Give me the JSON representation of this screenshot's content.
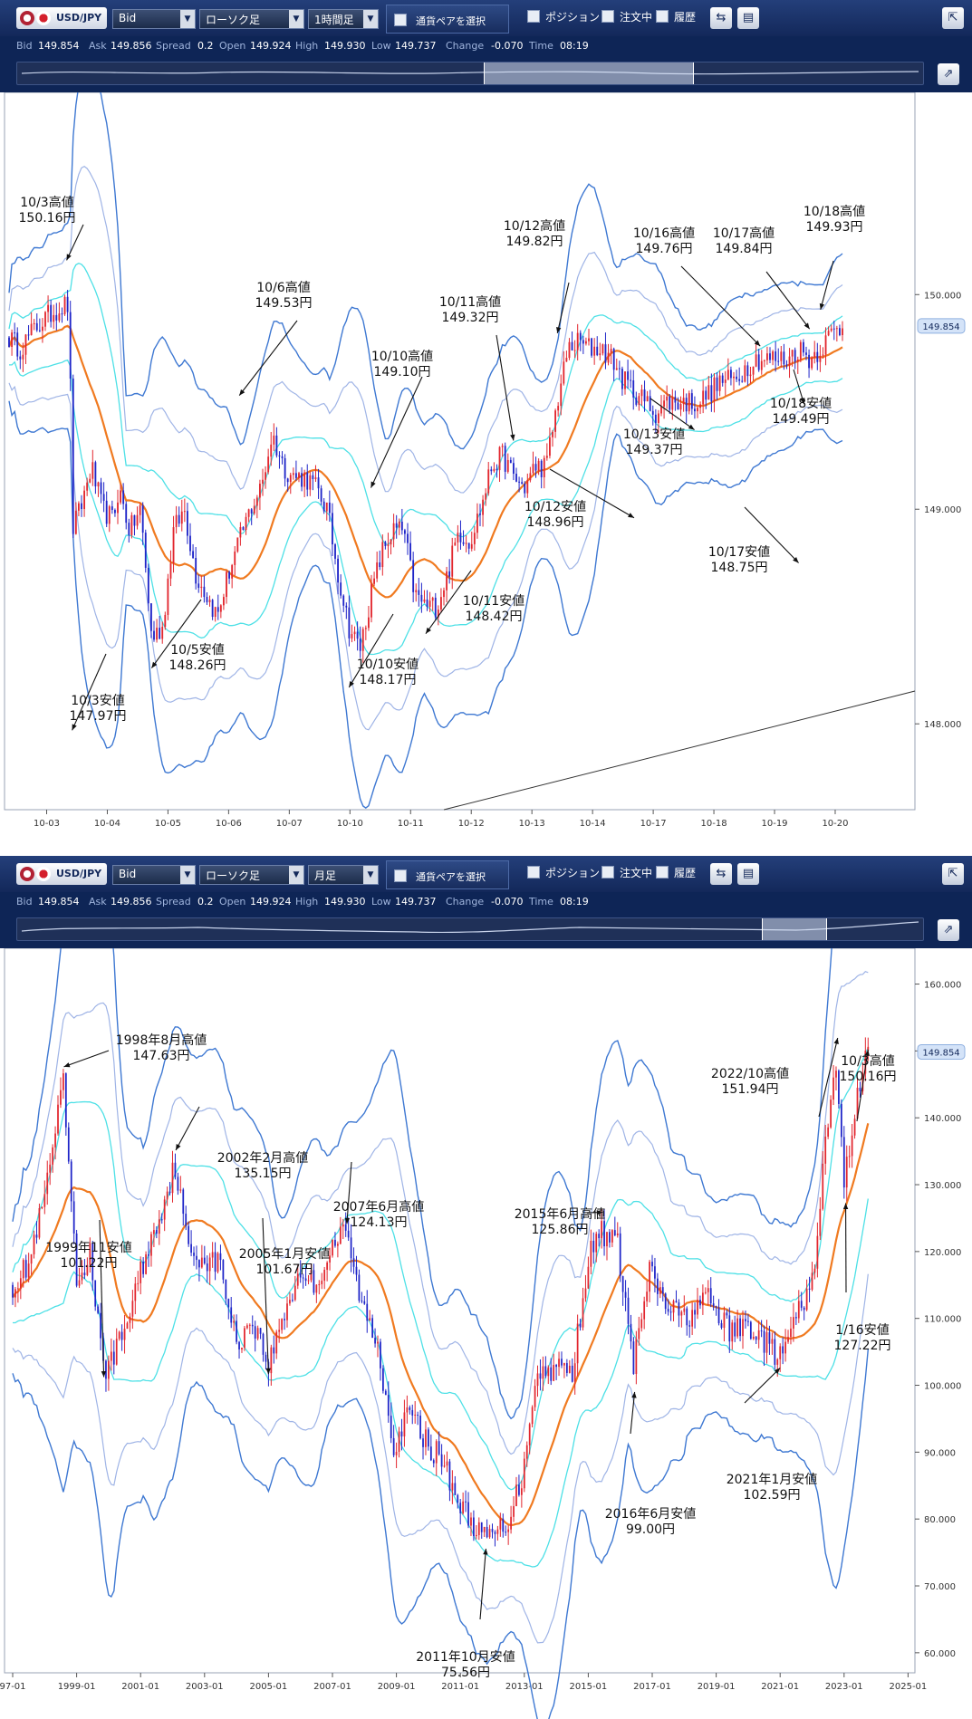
{
  "colors": {
    "bull": "#e2262e",
    "bear": "#1e24c8",
    "ma": "#f07a20",
    "band1": "#4de0e6",
    "band2": "#9fb4e6",
    "band3": "#3e78d2",
    "toolbar": "#13285a"
  },
  "top": {
    "pair": "USD/JPY",
    "price_type": "Bid",
    "chart_type": "ローソク足",
    "timeframe": "1時間足",
    "select_pair": "通貨ペアを選択",
    "positions": "ポジション",
    "orders": "注文中",
    "history": "履歴",
    "info": [
      {
        "label": "Bid",
        "value": "149.854"
      },
      {
        "label": "Ask",
        "value": "149.856"
      },
      {
        "label": "Spread",
        "value": "0.2"
      },
      {
        "label": "Open",
        "value": "149.924"
      },
      {
        "label": "High",
        "value": "149.930"
      },
      {
        "label": "Low",
        "value": "149.737"
      },
      {
        "label": "Change",
        "value": "-0.070"
      },
      {
        "label": "Time",
        "value": "08:19"
      }
    ],
    "current_price_label": "149.854"
  },
  "bottom": {
    "pair": "USD/JPY",
    "price_type": "Bid",
    "chart_type": "ローソク足",
    "timeframe": "月足",
    "select_pair": "通貨ペアを選択",
    "positions": "ポジション",
    "orders": "注文中",
    "history": "履歴",
    "info": [
      {
        "label": "Bid",
        "value": "149.854"
      },
      {
        "label": "Ask",
        "value": "149.856"
      },
      {
        "label": "Spread",
        "value": "0.2"
      },
      {
        "label": "Open",
        "value": "149.924"
      },
      {
        "label": "High",
        "value": "149.930"
      },
      {
        "label": "Low",
        "value": "149.737"
      },
      {
        "label": "Change",
        "value": "-0.070"
      },
      {
        "label": "Time",
        "value": "08:19"
      }
    ],
    "current_price_label": "149.854"
  },
  "chart_data": [
    {
      "type": "candlestick",
      "timeframe": "1時間足",
      "x_ticks": [
        "10-03",
        "10-04",
        "10-05",
        "10-06",
        "10-07",
        "10-10",
        "10-11",
        "10-12",
        "10-13",
        "10-14",
        "10-17",
        "10-18",
        "10-19",
        "10-20"
      ],
      "y_ticks": [
        "148.000",
        "149.000",
        "150.000"
      ],
      "ylim": [
        147.6,
        150.9
      ],
      "current_price": 149.854,
      "indicator": "Bollinger Bands",
      "close_path": [
        [
          0,
          149.8
        ],
        [
          2,
          149.75
        ],
        [
          5,
          149.85
        ],
        [
          8,
          149.92
        ],
        [
          10,
          149.95
        ],
        [
          11,
          149.95
        ],
        [
          11.5,
          148.9
        ],
        [
          13,
          149.0
        ],
        [
          15,
          149.2
        ],
        [
          17,
          149.0
        ],
        [
          19,
          148.95
        ],
        [
          20,
          149.1
        ],
        [
          22,
          148.9
        ],
        [
          24,
          149.0
        ],
        [
          26,
          148.4
        ],
        [
          28,
          148.45
        ],
        [
          30,
          148.9
        ],
        [
          32,
          149.0
        ],
        [
          34,
          148.7
        ],
        [
          36,
          148.6
        ],
        [
          38,
          148.5
        ],
        [
          40,
          148.7
        ],
        [
          42,
          148.85
        ],
        [
          44,
          149.0
        ],
        [
          46,
          149.1
        ],
        [
          48,
          149.35
        ],
        [
          50,
          149.2
        ],
        [
          52,
          149.15
        ],
        [
          54,
          149.15
        ],
        [
          56,
          149.1
        ],
        [
          58,
          149.0
        ],
        [
          60,
          148.7
        ],
        [
          62,
          148.45
        ],
        [
          64,
          148.35
        ],
        [
          66,
          148.6
        ],
        [
          68,
          148.8
        ],
        [
          70,
          148.9
        ],
        [
          72,
          148.9
        ],
        [
          74,
          148.6
        ],
        [
          76,
          148.55
        ],
        [
          78,
          148.55
        ],
        [
          80,
          148.7
        ],
        [
          82,
          148.9
        ],
        [
          84,
          148.85
        ],
        [
          86,
          149.0
        ],
        [
          88,
          149.2
        ],
        [
          90,
          149.25
        ],
        [
          92,
          149.15
        ],
        [
          94,
          149.1
        ],
        [
          96,
          149.2
        ],
        [
          98,
          149.2
        ],
        [
          100,
          149.5
        ],
        [
          102,
          149.75
        ],
        [
          104,
          149.78
        ],
        [
          106,
          149.75
        ],
        [
          108,
          149.75
        ],
        [
          110,
          149.7
        ],
        [
          112,
          149.6
        ],
        [
          114,
          149.55
        ],
        [
          116,
          149.5
        ],
        [
          118,
          149.45
        ],
        [
          120,
          149.5
        ],
        [
          122,
          149.5
        ],
        [
          124,
          149.5
        ],
        [
          126,
          149.5
        ],
        [
          128,
          149.55
        ],
        [
          130,
          149.6
        ],
        [
          132,
          149.6
        ],
        [
          134,
          149.65
        ],
        [
          136,
          149.7
        ],
        [
          138,
          149.7
        ],
        [
          140,
          149.7
        ],
        [
          142,
          149.7
        ],
        [
          144,
          149.75
        ],
        [
          146,
          149.7
        ],
        [
          148,
          149.75
        ],
        [
          150,
          149.82
        ],
        [
          152,
          149.85
        ]
      ],
      "annotations": [
        {
          "date": "10/3",
          "kind": "高値",
          "value": 150.16,
          "label": "10/3高値",
          "price": "150.16円"
        },
        {
          "date": "10/3",
          "kind": "安値",
          "value": 147.97,
          "label": "10/3安値",
          "price": "147.97円"
        },
        {
          "date": "10/5",
          "kind": "安値",
          "value": 148.26,
          "label": "10/5安値",
          "price": "148.26円"
        },
        {
          "date": "10/6",
          "kind": "高値",
          "value": 149.53,
          "label": "10/6高値",
          "price": "149.53円"
        },
        {
          "date": "10/10",
          "kind": "高値",
          "value": 149.1,
          "label": "10/10高値",
          "price": "149.10円"
        },
        {
          "date": "10/10",
          "kind": "安値",
          "value": 148.17,
          "label": "10/10安値",
          "price": "148.17円"
        },
        {
          "date": "10/11",
          "kind": "高値",
          "value": 149.32,
          "label": "10/11高値",
          "price": "149.32円"
        },
        {
          "date": "10/11",
          "kind": "安値",
          "value": 148.42,
          "label": "10/11安値",
          "price": "148.42円"
        },
        {
          "date": "10/12",
          "kind": "高値",
          "value": 149.82,
          "label": "10/12高値",
          "price": "149.82円"
        },
        {
          "date": "10/12",
          "kind": "安値",
          "value": 148.96,
          "label": "10/12安値",
          "price": "148.96円"
        },
        {
          "date": "10/13",
          "kind": "安値",
          "value": 149.37,
          "label": "10/13安値",
          "price": "149.37円"
        },
        {
          "date": "10/16",
          "kind": "高値",
          "value": 149.76,
          "label": "10/16高値",
          "price": "149.76円"
        },
        {
          "date": "10/17",
          "kind": "高値",
          "value": 149.84,
          "label": "10/17高値",
          "price": "149.84円"
        },
        {
          "date": "10/17",
          "kind": "安値",
          "value": 148.75,
          "label": "10/17安値",
          "price": "148.75円"
        },
        {
          "date": "10/18",
          "kind": "高値",
          "value": 149.93,
          "label": "10/18高値",
          "price": "149.93円"
        },
        {
          "date": "10/18",
          "kind": "安値",
          "value": 149.49,
          "label": "10/18安値",
          "price": "149.49円"
        }
      ]
    },
    {
      "type": "candlestick",
      "timeframe": "月足",
      "x_ticks": [
        "97-01",
        "1999-01",
        "2001-01",
        "2003-01",
        "2005-01",
        "2007-01",
        "2009-01",
        "2011-01",
        "2013-01",
        "2015-01",
        "2017-01",
        "2019-01",
        "2021-01",
        "2023-01",
        "2025-01"
      ],
      "y_ticks": [
        "60.000",
        "70.000",
        "80.000",
        "90.000",
        "100.000",
        "110.000",
        "120.000",
        "130.000",
        "140.000",
        "150.000",
        "160.000"
      ],
      "ylim": [
        57,
        164
      ],
      "current_price": 149.854,
      "indicator": "Bollinger Bands",
      "close_path": [
        [
          "1997-01",
          115
        ],
        [
          "1997-07",
          118
        ],
        [
          "1998-01",
          128
        ],
        [
          "1998-08",
          145
        ],
        [
          "1999-01",
          115
        ],
        [
          "1999-06",
          120
        ],
        [
          "1999-11",
          102
        ],
        [
          "2000-06",
          107
        ],
        [
          "2001-01",
          117
        ],
        [
          "2001-07",
          124
        ],
        [
          "2002-02",
          133
        ],
        [
          "2002-07",
          120
        ],
        [
          "2003-01",
          119
        ],
        [
          "2003-07",
          118
        ],
        [
          "2004-01",
          106
        ],
        [
          "2004-07",
          110
        ],
        [
          "2005-01",
          103
        ],
        [
          "2005-07",
          111
        ],
        [
          "2006-01",
          117
        ],
        [
          "2006-07",
          115
        ],
        [
          "2007-01",
          121
        ],
        [
          "2007-06",
          123
        ],
        [
          "2007-12",
          112
        ],
        [
          "2008-06",
          106
        ],
        [
          "2008-12",
          91
        ],
        [
          "2009-06",
          96
        ],
        [
          "2010-01",
          91
        ],
        [
          "2010-06",
          89
        ],
        [
          "2011-01",
          82
        ],
        [
          "2011-10",
          77
        ],
        [
          "2012-06",
          79
        ],
        [
          "2012-12",
          86
        ],
        [
          "2013-05",
          101
        ],
        [
          "2014-01",
          103
        ],
        [
          "2014-07",
          102
        ],
        [
          "2015-01",
          119
        ],
        [
          "2015-06",
          123
        ],
        [
          "2015-12",
          121
        ],
        [
          "2016-06",
          103
        ],
        [
          "2016-12",
          117
        ],
        [
          "2017-06",
          112
        ],
        [
          "2018-01",
          110
        ],
        [
          "2018-10",
          113
        ],
        [
          "2019-06",
          108
        ],
        [
          "2020-01",
          109
        ],
        [
          "2020-06",
          107
        ],
        [
          "2021-01",
          104
        ],
        [
          "2021-07",
          110
        ],
        [
          "2022-01",
          115
        ],
        [
          "2022-06",
          136
        ],
        [
          "2022-10",
          148
        ],
        [
          "2023-01",
          130
        ],
        [
          "2023-06",
          144
        ],
        [
          "2023-10",
          150
        ]
      ],
      "annotations": [
        {
          "date": "1998年8月",
          "kind": "高値",
          "value": 147.63,
          "label": "1998年8月高値",
          "price": "147.63円"
        },
        {
          "date": "1999年11月",
          "kind": "安値",
          "value": 101.22,
          "label": "1999年11安値",
          "price": "101.22円"
        },
        {
          "date": "2002年2月",
          "kind": "高値",
          "value": 135.15,
          "label": "2002年2月高値",
          "price": "135.15円"
        },
        {
          "date": "2005年1月",
          "kind": "安値",
          "value": 101.67,
          "label": "2005年1月安値",
          "price": "101.67円"
        },
        {
          "date": "2007年6月",
          "kind": "高値",
          "value": 124.13,
          "label": "2007年6月高値",
          "price": "124.13円"
        },
        {
          "date": "2011年10月",
          "kind": "安値",
          "value": 75.56,
          "label": "2011年10月安値",
          "price": "75.56円"
        },
        {
          "date": "2015年6月",
          "kind": "高値",
          "value": 125.86,
          "label": "2015年6月高値",
          "price": "125.86円"
        },
        {
          "date": "2016年6月",
          "kind": "安値",
          "value": 99.0,
          "label": "2016年6月安値",
          "price": "99.00円"
        },
        {
          "date": "2021年1月",
          "kind": "安値",
          "value": 102.59,
          "label": "2021年1月安値",
          "price": "102.59円"
        },
        {
          "date": "2022/10",
          "kind": "高値",
          "value": 151.94,
          "label": "2022/10高値",
          "price": "151.94円"
        },
        {
          "date": "1/16",
          "kind": "安値",
          "value": 127.22,
          "label": "1/16安値",
          "price": "127.22円"
        },
        {
          "date": "10/3",
          "kind": "高値",
          "value": 150.16,
          "label": "10/3高値",
          "price": "150.16円"
        }
      ]
    }
  ]
}
